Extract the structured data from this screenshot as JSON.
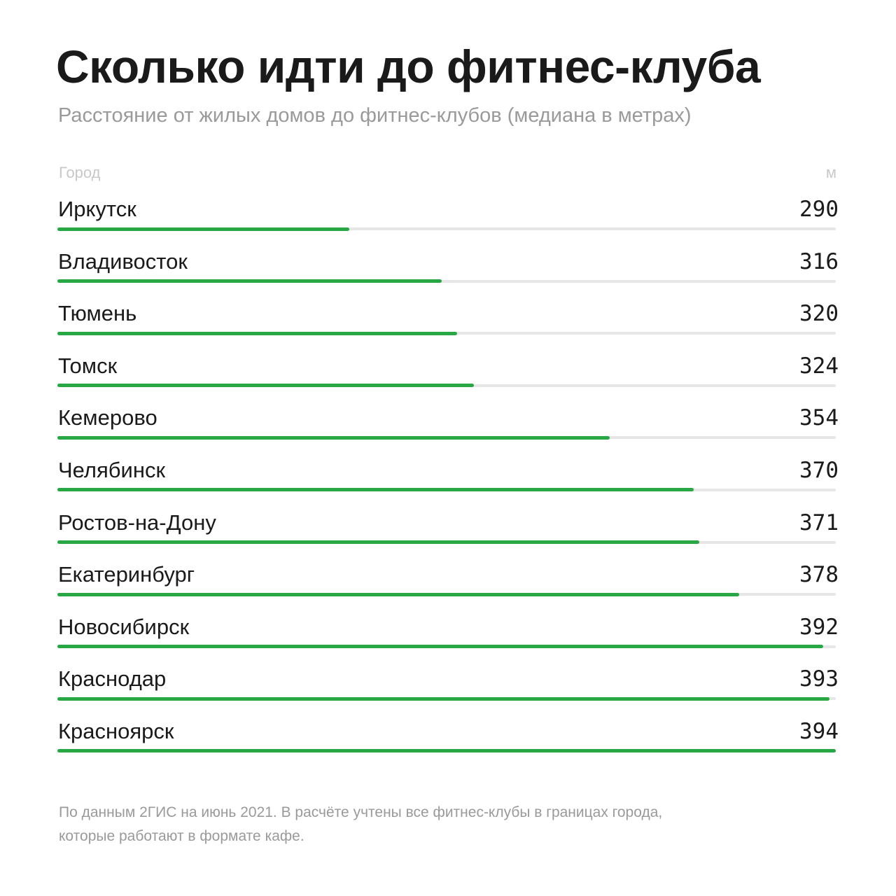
{
  "header": {
    "title": "Сколько идти до фитнес-клуба",
    "subtitle": "Расстояние от жилых домов до фитнес-клубов (медиана в метрах)"
  },
  "columns": {
    "left": "Город",
    "right": "м"
  },
  "footnote": {
    "line1": "По данным 2ГИС на июнь 2021. В расчёте учтены все фитнес-клубы в границах города,",
    "line2": "которые работают в формате кафе."
  },
  "colors": {
    "bar": "#28a745",
    "track": "#e6e6e6"
  },
  "chart_data": {
    "type": "bar",
    "orientation": "horizontal",
    "title": "Сколько идти до фитнес-клуба",
    "subtitle": "Расстояние от жилых домов до фитнес-клубов (медиана в метрах)",
    "xlabel": "м",
    "ylabel": "Город",
    "grid": false,
    "categories": [
      "Иркутск",
      "Владивосток",
      "Тюмень",
      "Томск",
      "Кемерово",
      "Челябинск",
      "Ростов-на-Дону",
      "Екатеринбург",
      "Новосибирск",
      "Краснодар",
      "Красноярск"
    ],
    "values": [
      290,
      316,
      320,
      324,
      354,
      370,
      371,
      378,
      392,
      393,
      394
    ],
    "value_labels": [
      "290",
      "316",
      "320",
      "324",
      "354",
      "370",
      "371",
      "378",
      "392",
      "393",
      "394"
    ],
    "xlim": [
      0,
      394
    ]
  }
}
